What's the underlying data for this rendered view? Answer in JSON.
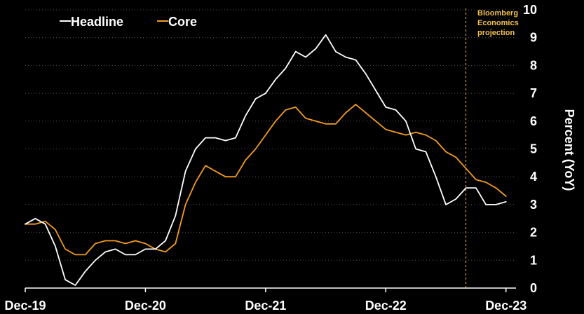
{
  "chart_data": {
    "type": "line",
    "ylabel": "Percent (YoY)",
    "ylim": [
      0,
      10
    ],
    "y_ticks": [
      "0",
      "1",
      "2",
      "3",
      "4",
      "5",
      "6",
      "7",
      "8",
      "9",
      "10"
    ],
    "x_ticks": [
      {
        "label": "Dec-19",
        "x": 0
      },
      {
        "label": "Dec-20",
        "x": 12
      },
      {
        "label": "Dec-21",
        "x": 24
      },
      {
        "label": "Dec-22",
        "x": 36
      },
      {
        "label": "Dec-23",
        "x": 48
      }
    ],
    "x_range": [
      0,
      49
    ],
    "projection_start": 44,
    "annotation": [
      "Bloomberg",
      "Economics",
      "projection"
    ],
    "legend_placement": "top-left",
    "grid": true,
    "series": [
      {
        "name": "Headline",
        "color": "#ffffff",
        "values": [
          2.3,
          2.5,
          2.3,
          1.5,
          0.3,
          0.1,
          0.6,
          1.0,
          1.3,
          1.4,
          1.2,
          1.2,
          1.4,
          1.4,
          1.7,
          2.6,
          4.2,
          5.0,
          5.4,
          5.4,
          5.3,
          5.4,
          6.2,
          6.8,
          7.0,
          7.5,
          7.9,
          8.5,
          8.3,
          8.6,
          9.1,
          8.5,
          8.3,
          8.2,
          7.7,
          7.1,
          6.5,
          6.4,
          6.0,
          5.0,
          4.9,
          4.0,
          3.0,
          3.2,
          3.6,
          3.6,
          3.0,
          3.0,
          3.1
        ]
      },
      {
        "name": "Core",
        "color": "#f39c22",
        "values": [
          2.3,
          2.3,
          2.4,
          2.1,
          1.4,
          1.2,
          1.2,
          1.6,
          1.7,
          1.7,
          1.6,
          1.7,
          1.6,
          1.4,
          1.3,
          1.6,
          3.0,
          3.8,
          4.4,
          4.2,
          4.0,
          4.0,
          4.6,
          5.0,
          5.5,
          6.0,
          6.4,
          6.5,
          6.1,
          6.0,
          5.9,
          5.9,
          6.3,
          6.6,
          6.3,
          6.0,
          5.7,
          5.6,
          5.5,
          5.6,
          5.5,
          5.3,
          4.9,
          4.7,
          4.3,
          3.9,
          3.8,
          3.6,
          3.3
        ]
      }
    ]
  }
}
